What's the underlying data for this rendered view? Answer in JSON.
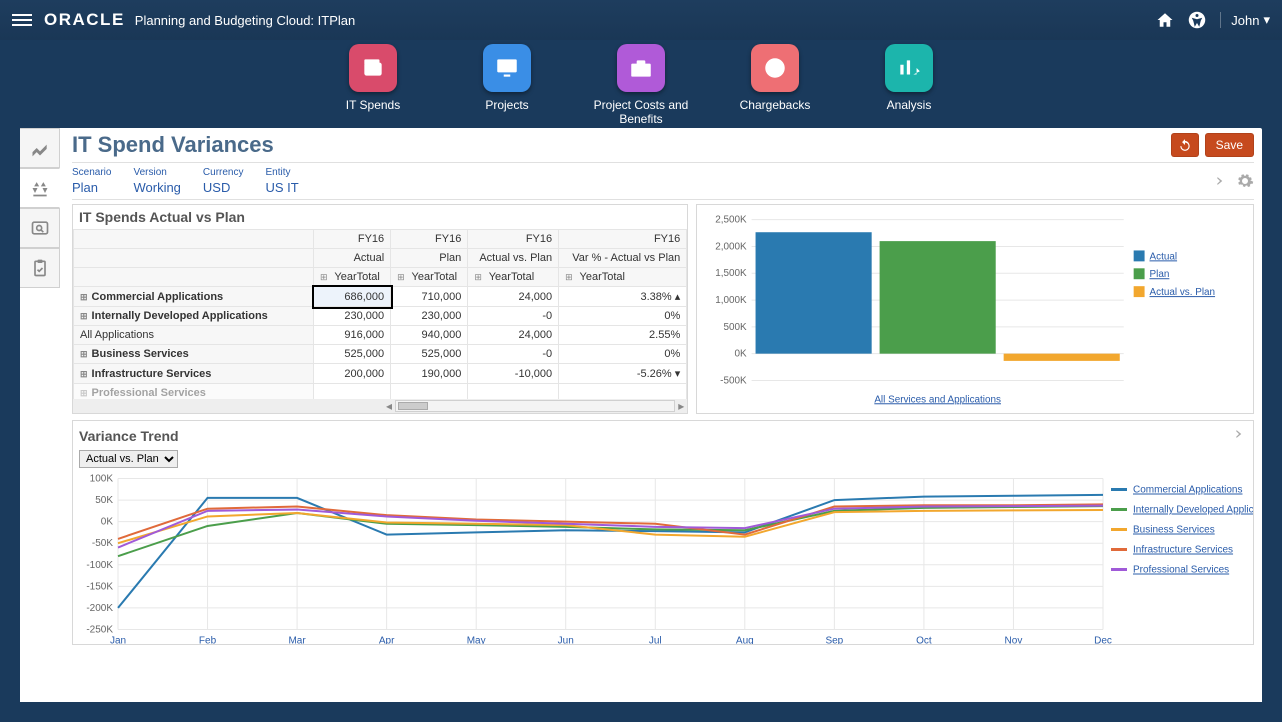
{
  "header": {
    "logo": "ORACLE",
    "app_title": "Planning and Budgeting Cloud: ITPlan",
    "user": "John"
  },
  "nav": [
    {
      "label": "IT Spends",
      "color": "#d94b6b",
      "icon": "wallet"
    },
    {
      "label": "Projects",
      "color": "#3a8ee6",
      "icon": "monitor"
    },
    {
      "label": "Project Costs and Benefits",
      "color": "#b05ad8",
      "icon": "briefcase"
    },
    {
      "label": "Chargebacks",
      "color": "#ee6f74",
      "icon": "pie"
    },
    {
      "label": "Analysis",
      "color": "#1cb5ac",
      "icon": "chart",
      "active": true
    }
  ],
  "page": {
    "title": "IT Spend Variances",
    "title_color": "#4a6a8a",
    "save_label": "Save"
  },
  "pov": [
    {
      "label": "Scenario",
      "value": "Plan"
    },
    {
      "label": "Version",
      "value": "Working"
    },
    {
      "label": "Currency",
      "value": "USD"
    },
    {
      "label": "Entity",
      "value": "US IT"
    }
  ],
  "table": {
    "title": "IT Spends Actual vs Plan",
    "col_top": "FY16",
    "col_sub": [
      "Actual",
      "Plan",
      "Actual vs. Plan",
      "Var % - Actual vs Plan"
    ],
    "col_year": "YearTotal",
    "rows": [
      {
        "name": "Commercial Applications",
        "expand": true,
        "actual": "686,000",
        "plan": "710,000",
        "var": "24,000",
        "pct": "3.38%",
        "up": true,
        "sel": true
      },
      {
        "name": "Internally Developed Applications",
        "expand": true,
        "actual": "230,000",
        "plan": "230,000",
        "var": "-0",
        "pct": "0%"
      },
      {
        "name": "All Applications",
        "expand": false,
        "actual": "916,000",
        "plan": "940,000",
        "var": "24,000",
        "pct": "2.55%"
      },
      {
        "name": "Business Services",
        "expand": true,
        "actual": "525,000",
        "plan": "525,000",
        "var": "-0",
        "pct": "0%"
      },
      {
        "name": "Infrastructure Services",
        "expand": true,
        "actual": "200,000",
        "plan": "190,000",
        "var": "-10,000",
        "pct": "-5.26%",
        "down": true
      },
      {
        "name": "Professional Services",
        "expand": true,
        "actual": "",
        "plan": "",
        "var": "",
        "pct": "",
        "faded": true
      }
    ]
  },
  "bar_chart": {
    "ylim": [
      -500,
      2500
    ],
    "ystep": 500,
    "unit": "K",
    "bars": [
      {
        "label": "Actual",
        "value": 2266,
        "color": "#2a7ab0"
      },
      {
        "label": "Plan",
        "value": 2100,
        "color": "#4b9e4b"
      },
      {
        "label": "Actual vs. Plan",
        "value": -135,
        "color": "#f2a72e"
      }
    ],
    "x_label": "All Services and Applications",
    "background": "#ffffff",
    "grid_color": "#e7e7e7"
  },
  "trend": {
    "title": "Variance Trend",
    "dropdown": "Actual vs. Plan",
    "ylim": [
      -250,
      100
    ],
    "ystep": 50,
    "unit": "K",
    "months": [
      "Jan",
      "Feb",
      "Mar",
      "Apr",
      "May",
      "Jun",
      "Jul",
      "Aug",
      "Sep",
      "Oct",
      "Nov",
      "Dec"
    ],
    "series": [
      {
        "name": "Commercial Applications",
        "color": "#2a7ab0",
        "data": [
          -200,
          55,
          55,
          -30,
          -25,
          -20,
          -22,
          -25,
          50,
          58,
          60,
          62
        ]
      },
      {
        "name": "Internally Developed Applications",
        "color": "#4b9e4b",
        "data": [
          -80,
          -10,
          20,
          -5,
          -8,
          -12,
          -18,
          -20,
          25,
          32,
          34,
          36
        ]
      },
      {
        "name": "Business Services",
        "color": "#f2a72e",
        "data": [
          -50,
          12,
          20,
          -2,
          -5,
          -8,
          -30,
          -35,
          22,
          25,
          26,
          27
        ]
      },
      {
        "name": "Infrastructure Services",
        "color": "#e06a3a",
        "data": [
          -40,
          30,
          35,
          15,
          5,
          0,
          -5,
          -30,
          35,
          38,
          38,
          40
        ]
      },
      {
        "name": "Professional Services",
        "color": "#a05ad8",
        "data": [
          -60,
          25,
          28,
          12,
          2,
          -5,
          -12,
          -15,
          30,
          35,
          36,
          37
        ]
      }
    ]
  }
}
